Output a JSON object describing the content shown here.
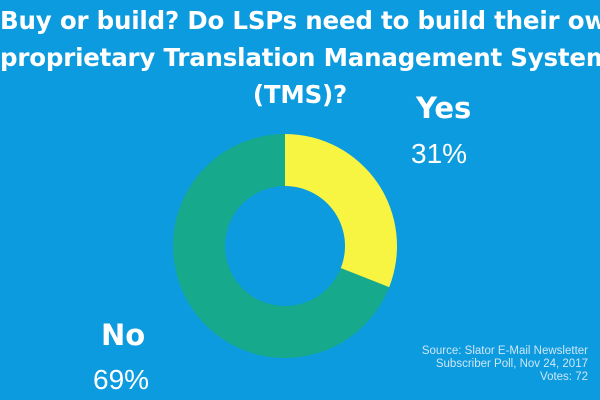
{
  "title": {
    "line1": "Buy or build? Do LSPs need to build their own",
    "line2": "proprietary Translation Management System",
    "line3": "(TMS)?"
  },
  "chart_data": {
    "type": "pie",
    "donut": true,
    "categories": [
      "Yes",
      "No"
    ],
    "values": [
      31,
      69
    ],
    "labels": [
      "31%",
      "69%"
    ],
    "colors": [
      "#f7f542",
      "#17a98c"
    ],
    "title": "Buy or build? Do LSPs need to build their own proprietary Translation Management System (TMS)?"
  },
  "slices": {
    "yes": {
      "name": "Yes",
      "percent": "31%"
    },
    "no": {
      "name": "No",
      "percent": "69%"
    }
  },
  "source": {
    "line1": "Source: Slator E-Mail Newsletter",
    "line2": "Subscriber Poll, Nov 24, 2017",
    "line3": "Votes: 72"
  },
  "colors": {
    "background": "#0b9bde",
    "text": "#ffffff",
    "source_text": "#cfe6f7"
  }
}
